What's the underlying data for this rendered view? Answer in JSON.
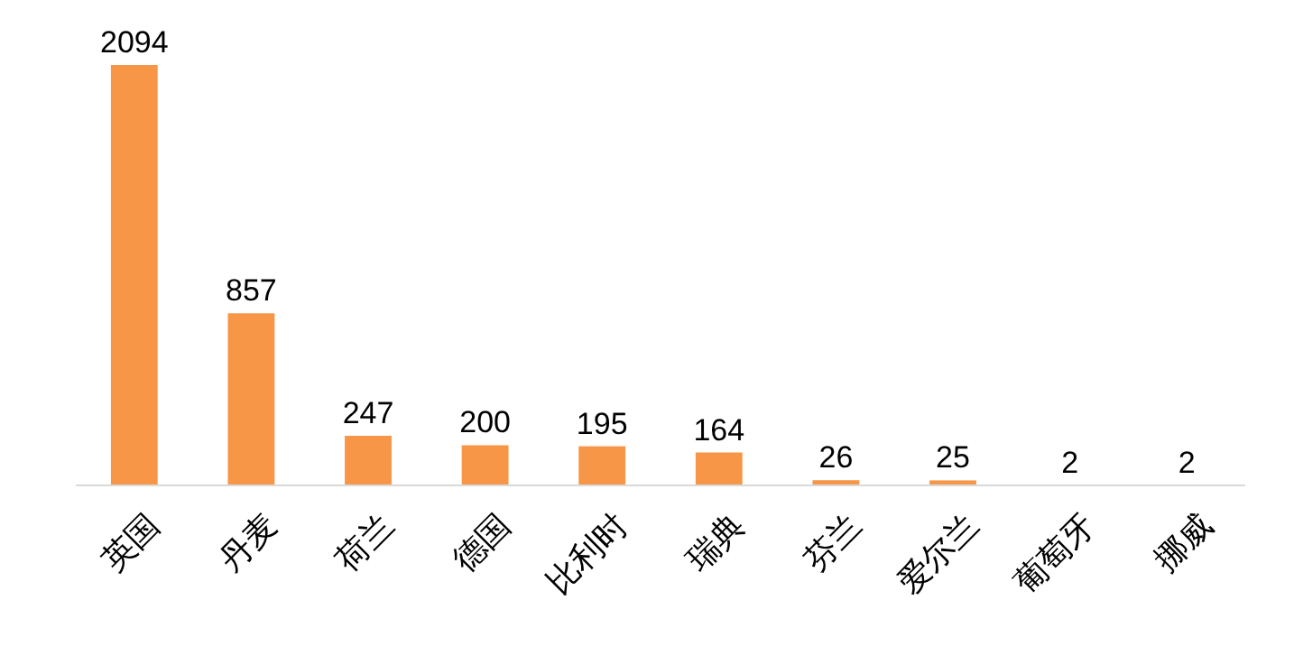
{
  "chart_data": {
    "type": "bar",
    "categories": [
      "英国",
      "丹麦",
      "荷兰",
      "德国",
      "比利时",
      "瑞典",
      "芬兰",
      "爱尔兰",
      "葡萄牙",
      "挪威"
    ],
    "values": [
      2094,
      857,
      247,
      200,
      195,
      164,
      26,
      25,
      2,
      2
    ],
    "color": "#f79646",
    "data_labels": true
  }
}
